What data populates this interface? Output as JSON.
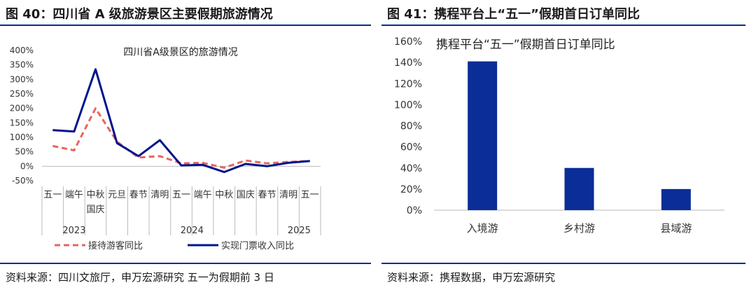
{
  "left": {
    "figure_title": "图 40：四川省 A 级旅游景区主要假期旅游情况",
    "source": "资料来源：四川文旅厅，申万宏源研究  五一为假期前 3 日"
  },
  "right": {
    "figure_title": "图 41：携程平台上“五一”假期首日订单同比",
    "source": "资料来源：携程数据，申万宏源研究"
  },
  "colors": {
    "navy": "#00148c",
    "red": "#e8655e",
    "bar": "#0a2d97",
    "rule": "#0b2d8c"
  },
  "chart_data": [
    {
      "type": "line",
      "title": "四川省A级景区的旅游情况",
      "categories": [
        "五一",
        "端午",
        "中秋\n国庆",
        "元旦",
        "春节",
        "清明",
        "五一",
        "端午",
        "中秋",
        "国庆",
        "春节",
        "清明",
        "五一"
      ],
      "year_labels": [
        "2023",
        "2024",
        "2025"
      ],
      "series": [
        {
          "name": "接待游客同比",
          "style": "dashed",
          "color": "#e8655e",
          "values": [
            70,
            55,
            200,
            85,
            30,
            35,
            10,
            12,
            -5,
            20,
            10,
            15,
            18
          ]
        },
        {
          "name": "实现门票收入同比",
          "style": "solid",
          "color": "#00148c",
          "values": [
            125,
            120,
            335,
            80,
            35,
            90,
            3,
            5,
            -20,
            8,
            0,
            12,
            18
          ]
        }
      ],
      "yticks": [
        "400%",
        "350%",
        "300%",
        "250%",
        "200%",
        "150%",
        "100%",
        "50%",
        "0%",
        "-50%"
      ],
      "ylim": [
        -50,
        400
      ],
      "legend": "bottom",
      "grid": false
    },
    {
      "type": "bar",
      "title": "携程平台“五一”假期首日订单同比",
      "categories": [
        "入境游",
        "乡村游",
        "县域游"
      ],
      "values": [
        141,
        40,
        20
      ],
      "yticks": [
        "160%",
        "140%",
        "120%",
        "100%",
        "80%",
        "60%",
        "40%",
        "20%",
        "0%"
      ],
      "ylim": [
        0,
        160
      ],
      "grid": false
    }
  ]
}
